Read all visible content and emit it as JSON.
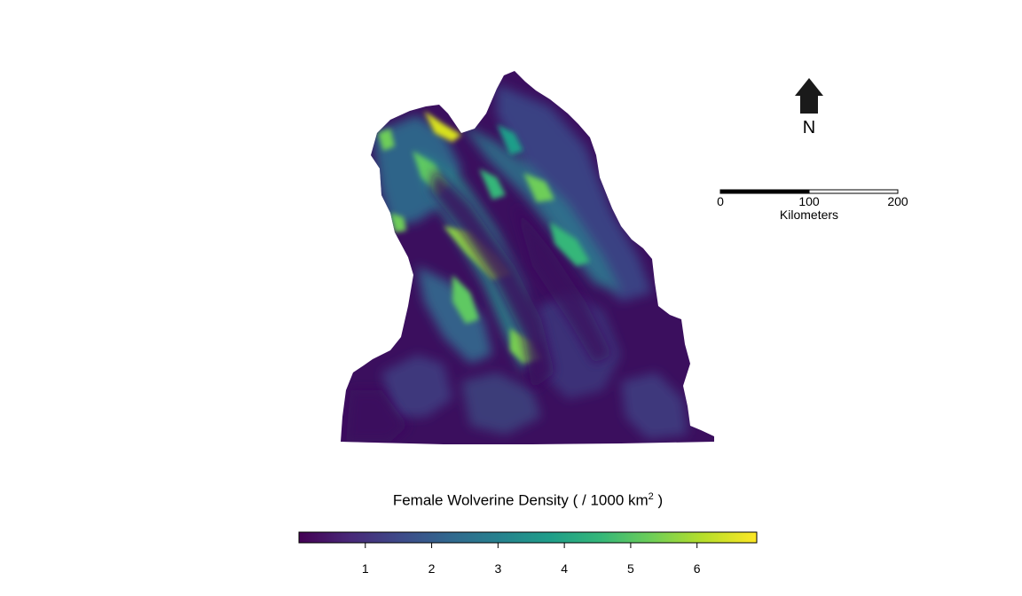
{
  "north_arrow": {
    "label": "N",
    "icon": "north-arrow-icon"
  },
  "scale_bar": {
    "ticks": [
      "0",
      "100",
      "200"
    ],
    "unit": "Kilometers"
  },
  "legend": {
    "title_prefix": "Female Wolverine Density ( / 1000 km",
    "title_superscript": "2",
    "title_suffix": " )",
    "colormap": "viridis",
    "range": [
      0,
      6.9
    ],
    "colors": [
      "#440154",
      "#482878",
      "#3e4a89",
      "#31688e",
      "#26828e",
      "#1f9e89",
      "#35b779",
      "#6ece58",
      "#b5de2b",
      "#fde725"
    ],
    "ticks": [
      {
        "value": 1,
        "label": "1"
      },
      {
        "value": 2,
        "label": "2"
      },
      {
        "value": 3,
        "label": "3"
      },
      {
        "value": 4,
        "label": "4"
      },
      {
        "value": 5,
        "label": "5"
      },
      {
        "value": 6,
        "label": "6"
      }
    ]
  }
}
